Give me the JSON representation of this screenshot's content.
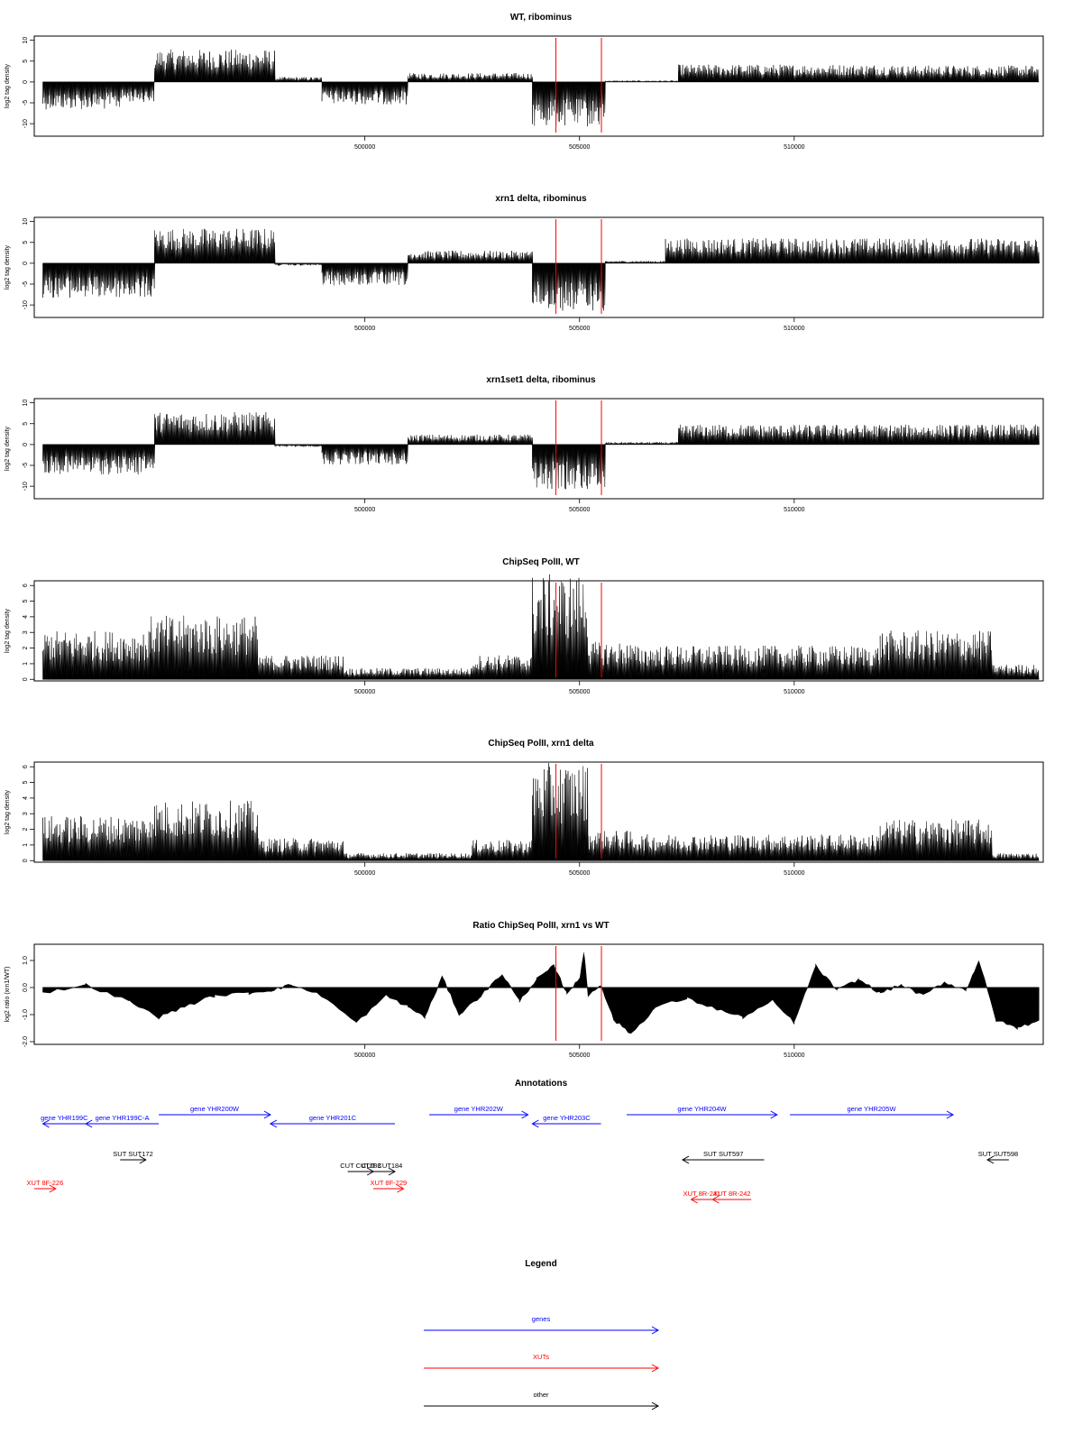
{
  "chart_data": [
    {
      "type": "bar",
      "title": "WT, ribominus",
      "ylabel": "log2 tag density",
      "ylim": [
        -13,
        11
      ],
      "xlim": [
        492300,
        515800
      ],
      "yticks": [
        -10,
        -5,
        0,
        5,
        10
      ],
      "xticks": [
        500000,
        505000,
        510000
      ],
      "red_lines": [
        504450,
        505510
      ],
      "segments": [
        {
          "x0": 492500,
          "x1": 494300,
          "value": -5.5
        },
        {
          "x0": 494300,
          "x1": 495100,
          "value": -4.0
        },
        {
          "x0": 495100,
          "x1": 497900,
          "value": 6.5
        },
        {
          "x0": 497900,
          "x1": 499000,
          "value": 1.0
        },
        {
          "x0": 499000,
          "x1": 501000,
          "value": -4.5
        },
        {
          "x0": 501000,
          "x1": 503900,
          "value": 1.8
        },
        {
          "x0": 503900,
          "x1": 505600,
          "value": -9.0
        },
        {
          "x0": 505600,
          "x1": 507300,
          "value": 0.3
        },
        {
          "x0": 507300,
          "x1": 512500,
          "value": 3.5
        },
        {
          "x0": 512500,
          "x1": 515700,
          "value": 3.3
        }
      ]
    },
    {
      "type": "bar",
      "title": "xrn1 delta, ribominus",
      "ylabel": "log2 tag density",
      "ylim": [
        -13,
        11
      ],
      "xlim": [
        492300,
        515800
      ],
      "yticks": [
        -10,
        -5,
        0,
        5,
        10
      ],
      "xticks": [
        500000,
        505000,
        510000
      ],
      "red_lines": [
        504450,
        505510
      ],
      "segments": [
        {
          "x0": 492500,
          "x1": 495100,
          "value": -7.0
        },
        {
          "x0": 495100,
          "x1": 497900,
          "value": 7.0
        },
        {
          "x0": 497900,
          "x1": 499000,
          "value": -0.5
        },
        {
          "x0": 499000,
          "x1": 501000,
          "value": -4.5
        },
        {
          "x0": 501000,
          "x1": 503900,
          "value": 2.5
        },
        {
          "x0": 503900,
          "x1": 505600,
          "value": -9.5
        },
        {
          "x0": 505600,
          "x1": 507000,
          "value": 0.5
        },
        {
          "x0": 507000,
          "x1": 515700,
          "value": 5.0
        }
      ]
    },
    {
      "type": "bar",
      "title": "xrn1set1 delta, ribominus",
      "ylabel": "log2 tag density",
      "ylim": [
        -13,
        11
      ],
      "xlim": [
        492300,
        515800
      ],
      "yticks": [
        -10,
        -5,
        0,
        5,
        10
      ],
      "xticks": [
        500000,
        505000,
        510000
      ],
      "red_lines": [
        504450,
        505510
      ],
      "segments": [
        {
          "x0": 492500,
          "x1": 495100,
          "value": -6.0
        },
        {
          "x0": 495100,
          "x1": 497900,
          "value": 6.5
        },
        {
          "x0": 497900,
          "x1": 499000,
          "value": -0.5
        },
        {
          "x0": 499000,
          "x1": 501000,
          "value": -4.0
        },
        {
          "x0": 501000,
          "x1": 503900,
          "value": 2.0
        },
        {
          "x0": 503900,
          "x1": 505600,
          "value": -9.0
        },
        {
          "x0": 505600,
          "x1": 507300,
          "value": 0.5
        },
        {
          "x0": 507300,
          "x1": 515700,
          "value": 4.0
        }
      ]
    },
    {
      "type": "bar",
      "title": "ChipSeq PolII, WT",
      "ylabel": "log2 tag density",
      "ylim": [
        -0.1,
        6.3
      ],
      "xlim": [
        492300,
        515800
      ],
      "yticks": [
        0,
        1,
        2,
        3,
        4,
        5,
        6
      ],
      "xticks": [
        500000,
        505000,
        510000
      ],
      "red_lines": [
        504450,
        505510
      ],
      "segments": [
        {
          "x0": 492500,
          "x1": 495000,
          "value": 2.6
        },
        {
          "x0": 495000,
          "x1": 497500,
          "value": 3.4
        },
        {
          "x0": 497500,
          "x1": 499500,
          "value": 1.3
        },
        {
          "x0": 499500,
          "x1": 502500,
          "value": 0.6
        },
        {
          "x0": 502500,
          "x1": 503900,
          "value": 1.3
        },
        {
          "x0": 503900,
          "x1": 505200,
          "value": 5.6
        },
        {
          "x0": 505200,
          "x1": 506200,
          "value": 2.0
        },
        {
          "x0": 506200,
          "x1": 512000,
          "value": 1.8
        },
        {
          "x0": 512000,
          "x1": 514600,
          "value": 2.6
        },
        {
          "x0": 514600,
          "x1": 515700,
          "value": 0.8
        }
      ]
    },
    {
      "type": "bar",
      "title": "ChipSeq PolII, xrn1 delta",
      "ylabel": "log2 tag density",
      "ylim": [
        -0.1,
        6.3
      ],
      "xlim": [
        492300,
        515800
      ],
      "yticks": [
        0,
        1,
        2,
        3,
        4,
        5,
        6
      ],
      "xticks": [
        500000,
        505000,
        510000
      ],
      "red_lines": [
        504450,
        505510
      ],
      "segments": [
        {
          "x0": 492500,
          "x1": 495000,
          "value": 2.4
        },
        {
          "x0": 495000,
          "x1": 497500,
          "value": 3.2
        },
        {
          "x0": 497500,
          "x1": 499500,
          "value": 1.2
        },
        {
          "x0": 499500,
          "x1": 502500,
          "value": 0.4
        },
        {
          "x0": 502500,
          "x1": 503900,
          "value": 1.1
        },
        {
          "x0": 503900,
          "x1": 505200,
          "value": 5.2
        },
        {
          "x0": 505200,
          "x1": 506200,
          "value": 1.6
        },
        {
          "x0": 506200,
          "x1": 512000,
          "value": 1.4
        },
        {
          "x0": 512000,
          "x1": 514600,
          "value": 2.2
        },
        {
          "x0": 514600,
          "x1": 515700,
          "value": 0.4
        }
      ]
    },
    {
      "type": "area",
      "title": "Ratio ChipSeq PolII, xrn1 vs WT",
      "ylabel": "log2 ratio (xrn1/WT)",
      "ylim": [
        -2.1,
        1.6
      ],
      "xlim": [
        492300,
        515800
      ],
      "yticks": [
        -2.0,
        -1.0,
        0.0,
        1.0
      ],
      "ytick_labels": [
        "-2.0",
        "-1.0",
        "0.0",
        "1.0"
      ],
      "xticks": [
        500000,
        505000,
        510000
      ],
      "red_lines": [
        504450,
        505510
      ],
      "x": [
        492500,
        493500,
        494500,
        495200,
        495800,
        496500,
        497300,
        497800,
        498300,
        499000,
        499800,
        500500,
        501000,
        501400,
        501800,
        502200,
        502700,
        503200,
        503600,
        504000,
        504400,
        504700,
        505000,
        505100,
        505200,
        505500,
        505800,
        506200,
        506800,
        507500,
        508200,
        508800,
        509500,
        510000,
        510500,
        511000,
        511500,
        512000,
        512500,
        513000,
        513500,
        514000,
        514300,
        514700,
        515200,
        515700
      ],
      "y": [
        -0.2,
        0.1,
        -0.5,
        -1.1,
        -0.7,
        -0.3,
        -0.2,
        -0.1,
        0.1,
        -0.3,
        -1.3,
        -0.3,
        -0.7,
        -1.1,
        0.4,
        -1.0,
        -0.3,
        0.5,
        -0.5,
        0.3,
        0.8,
        -0.2,
        0.3,
        1.3,
        -0.3,
        0.1,
        -1.2,
        -1.7,
        -0.7,
        -0.4,
        -0.8,
        -1.1,
        -0.5,
        -1.3,
        0.8,
        -0.1,
        0.3,
        -0.2,
        0.1,
        -0.3,
        0.2,
        -0.1,
        1.0,
        -1.2,
        -1.5,
        -1.2
      ]
    }
  ],
  "annotations": {
    "title": "Annotations",
    "features": [
      {
        "label": "gene YHR199C",
        "type": "gene",
        "x0": 492500,
        "x1": 493500,
        "strand": "-",
        "row": 2
      },
      {
        "label": "gene YHR199C-A",
        "type": "gene",
        "x0": 493500,
        "x1": 495200,
        "strand": "-",
        "row": 2
      },
      {
        "label": "gene YHR200W",
        "type": "gene",
        "x0": 495200,
        "x1": 497800,
        "strand": "+",
        "row": 1
      },
      {
        "label": "gene YHR201C",
        "type": "gene",
        "x0": 497800,
        "x1": 500700,
        "strand": "-",
        "row": 2
      },
      {
        "label": "gene YHR202W",
        "type": "gene",
        "x0": 501500,
        "x1": 503800,
        "strand": "+",
        "row": 1
      },
      {
        "label": "gene YHR203C",
        "type": "gene",
        "x0": 503900,
        "x1": 505500,
        "strand": "-",
        "row": 2
      },
      {
        "label": "gene YHR204W",
        "type": "gene",
        "x0": 506100,
        "x1": 509600,
        "strand": "+",
        "row": 1
      },
      {
        "label": "gene YHR205W",
        "type": "gene",
        "x0": 509900,
        "x1": 513700,
        "strand": "+",
        "row": 1
      },
      {
        "label": "SUT SUT172",
        "type": "other",
        "x0": 494300,
        "x1": 494900,
        "strand": "+",
        "row": 3
      },
      {
        "label": "CUT CUT183",
        "type": "other",
        "x0": 499600,
        "x1": 500200,
        "strand": "+",
        "row": 4
      },
      {
        "label": "CUT CUT184",
        "type": "other",
        "x0": 500100,
        "x1": 500700,
        "strand": "+",
        "row": 4
      },
      {
        "label": "SUT SUT597",
        "type": "other",
        "x0": 507400,
        "x1": 509300,
        "strand": "-",
        "row": 3
      },
      {
        "label": "SUT SUT598",
        "type": "other",
        "x0": 514500,
        "x1": 515000,
        "strand": "-",
        "row": 3
      },
      {
        "label": "XUT 8F-226",
        "type": "XUT",
        "x0": 492300,
        "x1": 492800,
        "strand": "+",
        "row": 5
      },
      {
        "label": "XUT 8F-229",
        "type": "XUT",
        "x0": 500200,
        "x1": 500900,
        "strand": "+",
        "row": 5
      },
      {
        "label": "XUT 8R-241",
        "type": "XUT",
        "x0": 507600,
        "x1": 508100,
        "strand": "-",
        "row": 6
      },
      {
        "label": "XUT 8R-242",
        "type": "XUT",
        "x0": 508100,
        "x1": 509000,
        "strand": "-",
        "row": 6
      }
    ]
  },
  "legend": {
    "title": "Legend",
    "items": [
      {
        "label": "genes",
        "color": "#0000ff"
      },
      {
        "label": "XUTs",
        "color": "#ff0000"
      },
      {
        "label": "other",
        "color": "#000000"
      }
    ]
  },
  "colors": {
    "gene": "#0000ff",
    "XUT": "#ff0000",
    "other": "#000000",
    "marker": "#ff0000"
  }
}
